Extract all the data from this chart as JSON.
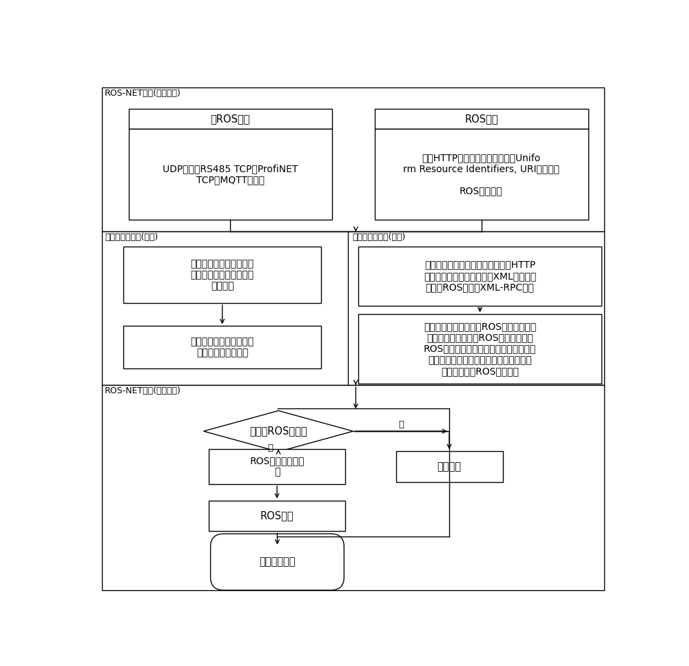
{
  "fig_width": 10.0,
  "fig_height": 9.67,
  "bg_color": "#ffffff",
  "sec1_label": "ROS-NET框架(外部设备)",
  "sec2_left_label": "虚拟网络中间件(内核)",
  "sec2_right_label": "虚拟网络适配器(内核)",
  "sec3_label": "ROS-NET框架(内部设备)",
  "non_ros_title_text": "非ROS数据",
  "non_ros_body_text": "UDP数据、RS485 TCP、ProfiNET\nTCP、MQTT数据等",
  "ros_title_text": "ROS数据",
  "ros_body_text": "通过HTTP使用统一资源标识符（Unifo\nrm Resource Identifiers, URI）封装的\n\nROS消息设备",
  "mid_left_box1_text": "注册驱动，当外部设备插\n入后，将自己展示为网络\n接口设备",
  "mid_left_box2_text": "接受设备信息数据包，并\n送至虚拟网络适配器",
  "mid_right_box1_text": "分析数据包，判断源数据是否满足HTTP\n协议。进一步确认数据符合XML封装，确\n认满足ROS通讯的XML-RPC协议",
  "mid_right_box2_text": "分发数据包，如果是非ROS数据，则直接\n将数据发送到相关非ROS程序。如果是\nROS数据，则通过本地回环放到共享内存\n（自动过程，有数据来自动添加到队列尾\n部）中供内部ROS程序使用",
  "diamond_text": "是否为ROS数据？",
  "ros_mem_text": "ROS共享内存、队\n列",
  "other_prog_text": "其他程序",
  "ros_prog_text": "ROS程序",
  "end_text": "单次传输结束",
  "label_yes": "是",
  "label_no": "否"
}
